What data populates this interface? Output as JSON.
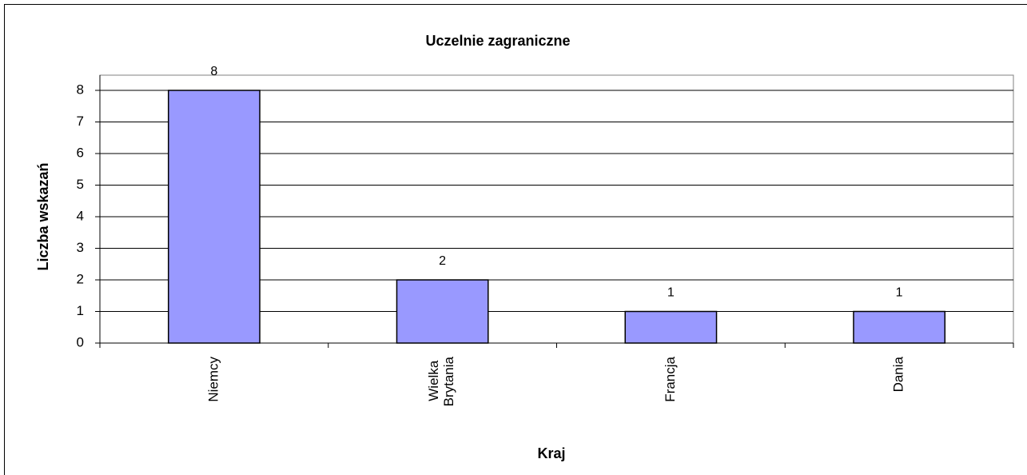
{
  "chart_data": {
    "type": "bar",
    "title": "Uczelnie zagraniczne",
    "x_label": "Kraj",
    "y_label": "Liczba wskazań",
    "categories": [
      "Niemcy",
      "Wielka Brytania",
      "Francja",
      "Dania"
    ],
    "values": [
      8,
      2,
      1,
      1
    ],
    "color": "#9999ff",
    "ylim": [
      0,
      8
    ],
    "yticks": [
      0,
      1,
      2,
      3,
      4,
      5,
      6,
      7,
      8
    ],
    "grid": true
  }
}
